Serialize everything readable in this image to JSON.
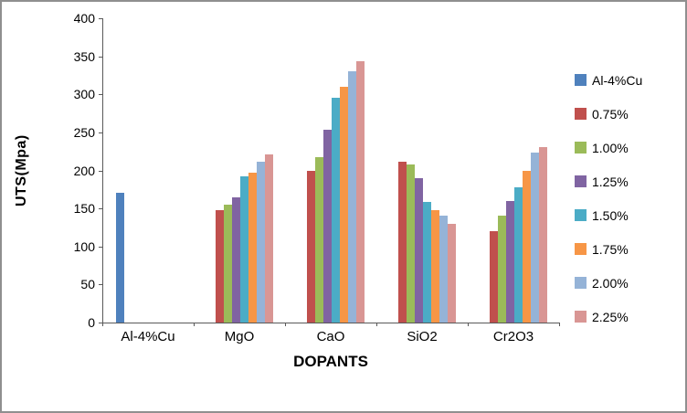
{
  "chart_data": {
    "type": "bar",
    "title": "",
    "xlabel": "DOPANTS",
    "ylabel": "UTS(Mpa)",
    "ylim": [
      0,
      400
    ],
    "yticks": [
      0,
      50,
      100,
      150,
      200,
      250,
      300,
      350,
      400
    ],
    "categories": [
      "Al-4%Cu",
      "MgO",
      "CaO",
      "SiO2",
      "Cr2O3"
    ],
    "series": [
      {
        "name": "Al-4%Cu",
        "color": "#4F81BD",
        "values": [
          170,
          0,
          0,
          0,
          0
        ]
      },
      {
        "name": "0.75%",
        "color": "#C0504D",
        "values": [
          0,
          148,
          200,
          212,
          120
        ]
      },
      {
        "name": "1.00%",
        "color": "#9BBB59",
        "values": [
          0,
          155,
          218,
          208,
          140
        ]
      },
      {
        "name": "1.25%",
        "color": "#8064A2",
        "values": [
          0,
          165,
          253,
          190,
          160
        ]
      },
      {
        "name": "1.50%",
        "color": "#4BACC6",
        "values": [
          0,
          192,
          296,
          158,
          178
        ]
      },
      {
        "name": "1.75%",
        "color": "#F79646",
        "values": [
          0,
          197,
          310,
          148,
          200
        ]
      },
      {
        "name": "2.00%",
        "color": "#95B3D7",
        "values": [
          0,
          212,
          330,
          140,
          224
        ]
      },
      {
        "name": "2.25%",
        "color": "#D99694",
        "values": [
          0,
          221,
          344,
          130,
          231
        ]
      }
    ],
    "legend_position": "right",
    "grid": false
  }
}
